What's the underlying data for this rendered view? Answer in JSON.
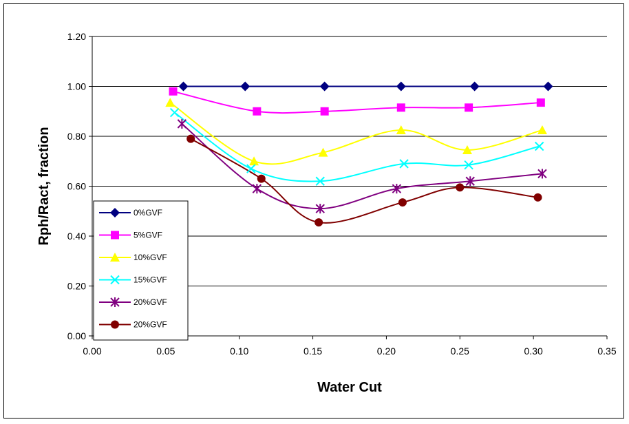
{
  "chart_data": {
    "type": "line",
    "title": "",
    "xlabel": "Water Cut",
    "ylabel": "Rph/Ract, fraction",
    "xlim": [
      0.0,
      0.35
    ],
    "ylim": [
      0.0,
      1.2
    ],
    "x_ticks": [
      "0.00",
      "0.05",
      "0.10",
      "0.15",
      "0.20",
      "0.25",
      "0.30",
      "0.35"
    ],
    "y_ticks": [
      "0.00",
      "0.20",
      "0.40",
      "0.60",
      "0.80",
      "1.00",
      "1.20"
    ],
    "grid": "horizontal",
    "legend_position": "bottom-left",
    "series": [
      {
        "name": "0%GVF",
        "color": "#000080",
        "marker": "diamond",
        "x": [
          0.062,
          0.104,
          0.158,
          0.21,
          0.26,
          0.31
        ],
        "y": [
          1.0,
          1.0,
          1.0,
          1.0,
          1.0,
          1.0
        ]
      },
      {
        "name": "5%GVF",
        "color": "#ff00ff",
        "marker": "square",
        "x": [
          0.055,
          0.112,
          0.158,
          0.21,
          0.256,
          0.305
        ],
        "y": [
          0.98,
          0.9,
          0.9,
          0.915,
          0.915,
          0.935
        ]
      },
      {
        "name": "10%GVF",
        "color": "#ffff00",
        "marker": "triangle",
        "x": [
          0.053,
          0.11,
          0.157,
          0.21,
          0.255,
          0.306
        ],
        "y": [
          0.935,
          0.7,
          0.735,
          0.825,
          0.745,
          0.825
        ]
      },
      {
        "name": "15%GVF",
        "color": "#00ffff",
        "marker": "x",
        "x": [
          0.056,
          0.108,
          0.155,
          0.212,
          0.256,
          0.304
        ],
        "y": [
          0.895,
          0.67,
          0.62,
          0.69,
          0.685,
          0.76
        ]
      },
      {
        "name": "20%GVF",
        "color": "#800080",
        "marker": "star",
        "x": [
          0.061,
          0.112,
          0.155,
          0.207,
          0.257,
          0.306
        ],
        "y": [
          0.85,
          0.59,
          0.51,
          0.59,
          0.62,
          0.65
        ]
      },
      {
        "name": "20%GVF",
        "color": "#800000",
        "marker": "circle",
        "x": [
          0.067,
          0.115,
          0.154,
          0.211,
          0.25,
          0.303
        ],
        "y": [
          0.79,
          0.63,
          0.455,
          0.535,
          0.595,
          0.555
        ]
      }
    ]
  }
}
